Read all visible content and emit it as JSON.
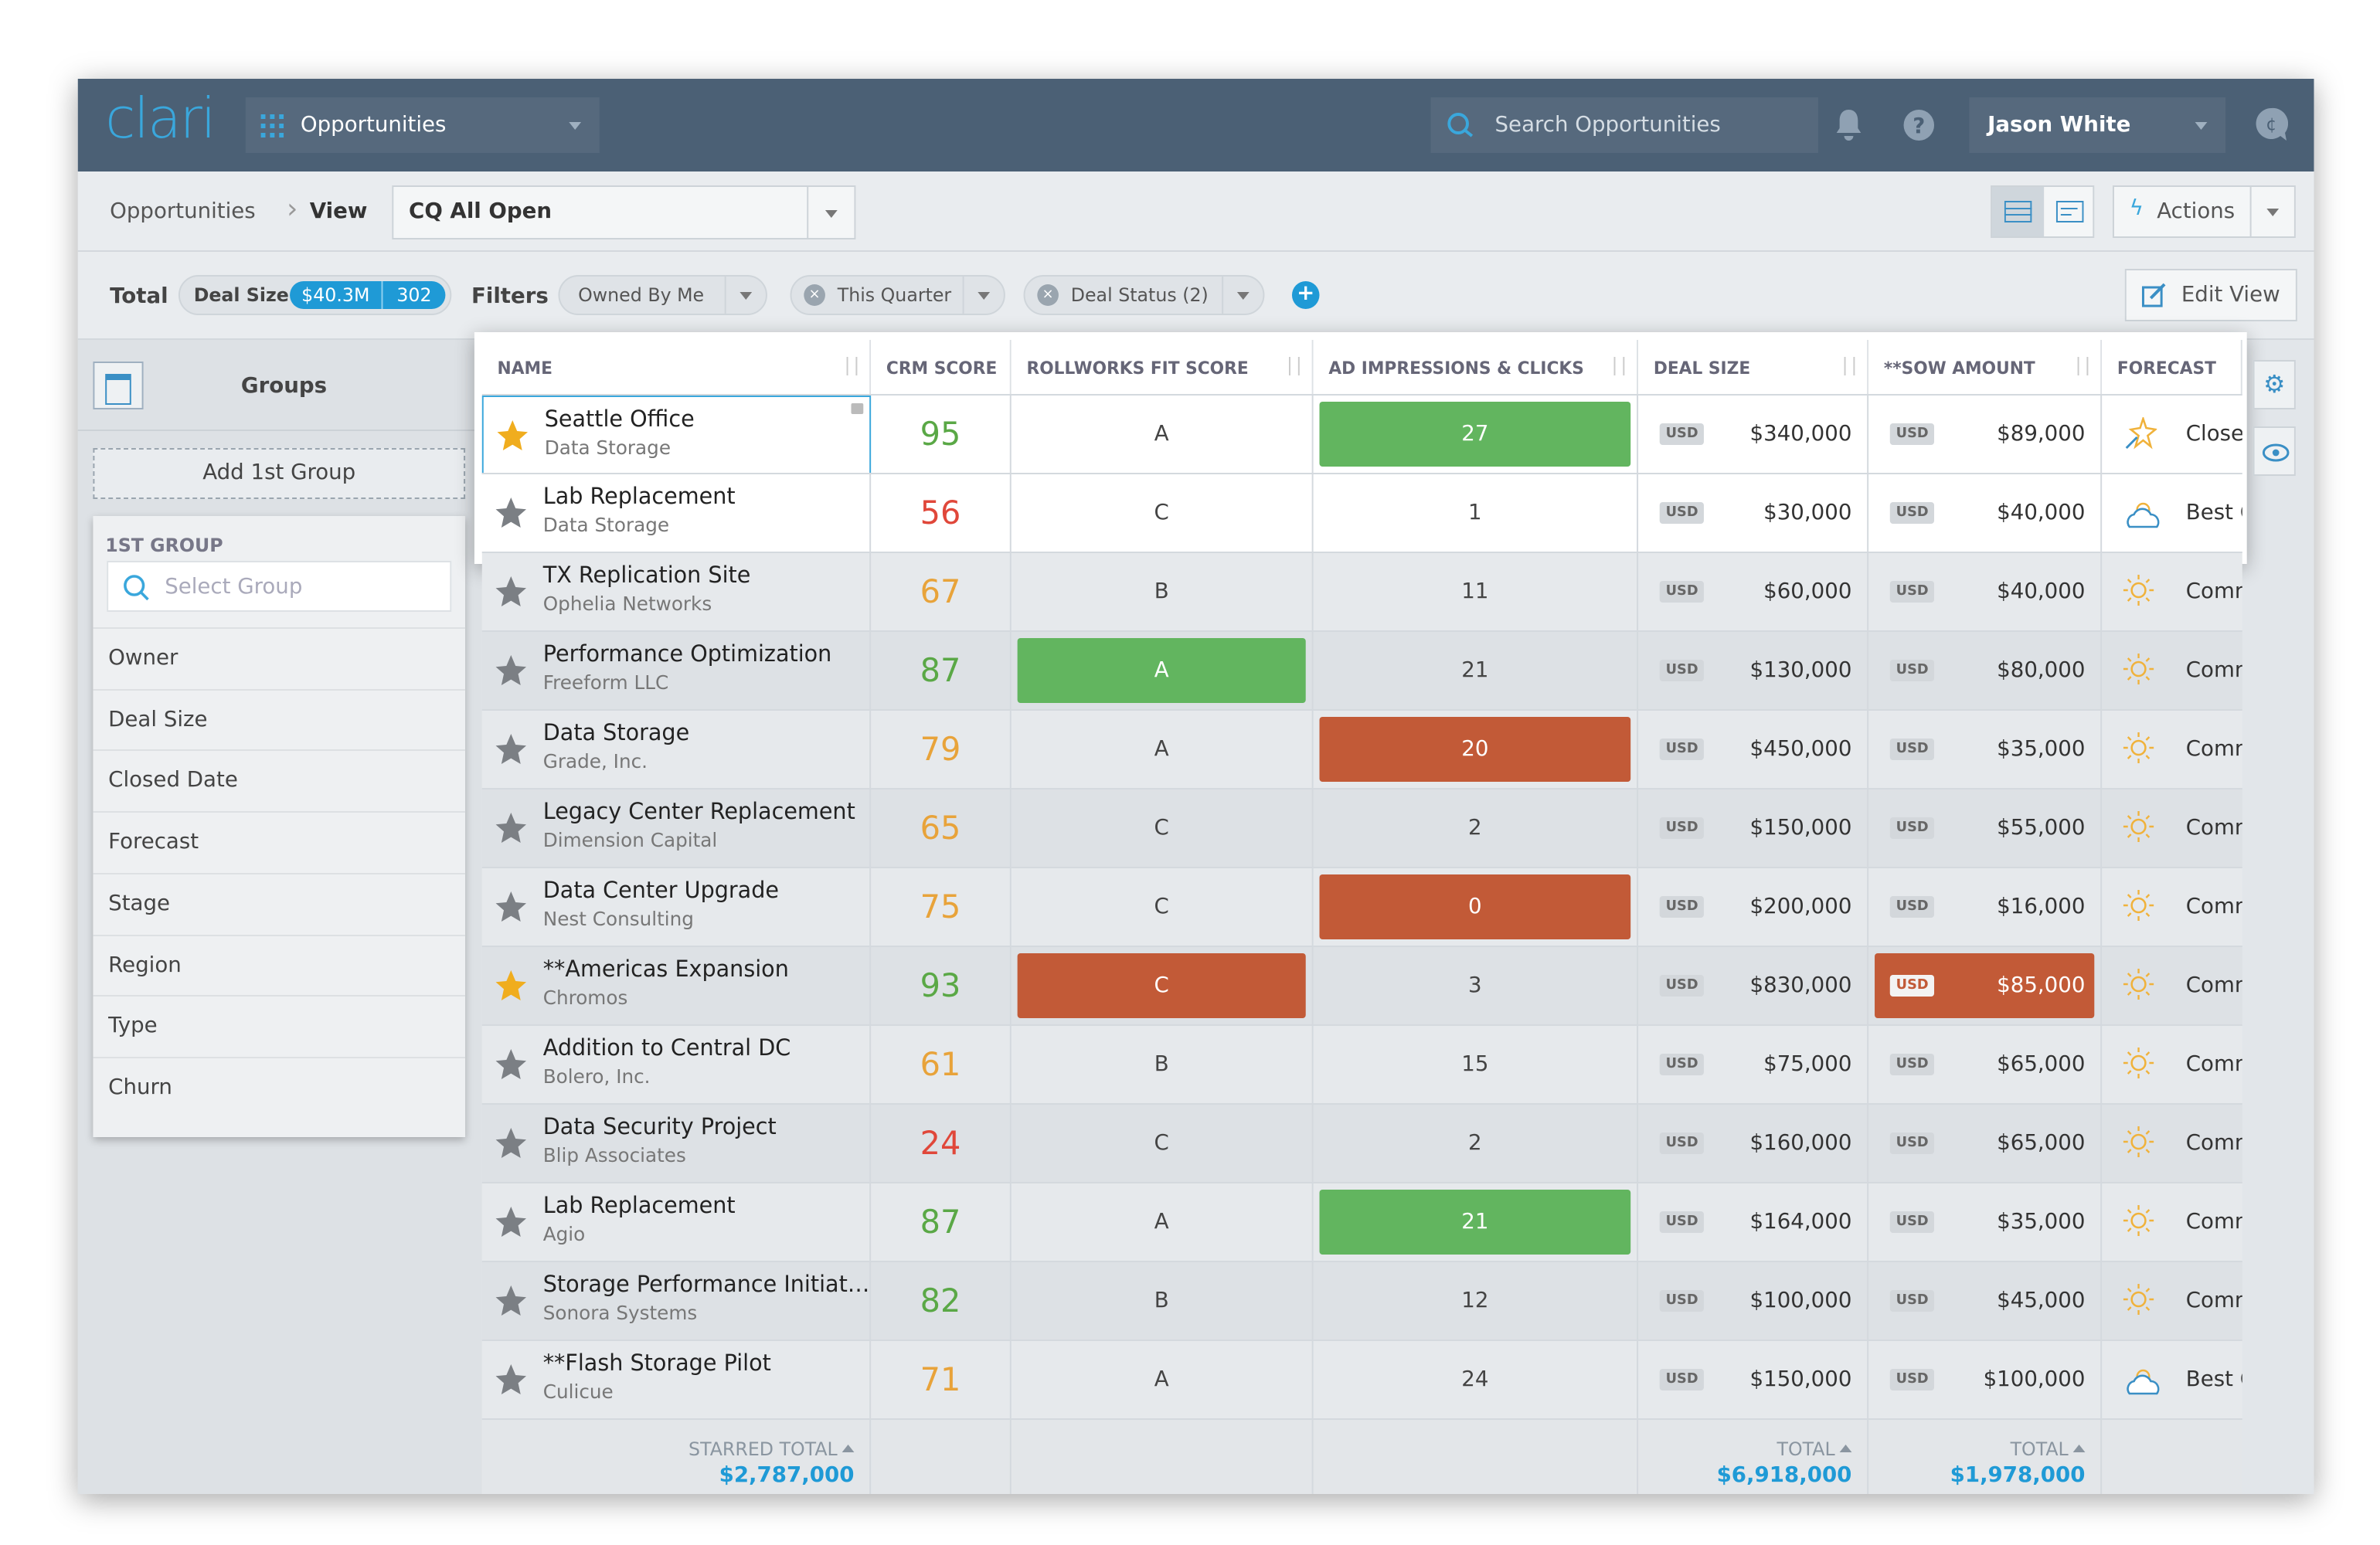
{
  "header": {
    "logo": "clari",
    "module": "Opportunities",
    "search_placeholder": "Search Opportunities",
    "user": "Jason White"
  },
  "breadcrumb": {
    "root": "Opportunities",
    "current": "View",
    "view_name": "CQ All Open",
    "actions": "Actions"
  },
  "summary": {
    "total_label": "Total",
    "deal_size_label": "Deal Size",
    "deal_size": "$40.3M",
    "count": "302",
    "filters_label": "Filters",
    "filters": [
      "Owned By Me",
      "This Quarter",
      "Deal Status (2)"
    ],
    "edit_view": "Edit View"
  },
  "groups": {
    "title": "Groups",
    "add": "Add 1st Group",
    "section": "1ST GROUP",
    "search_placeholder": "Select Group",
    "options": [
      "Owner",
      "Deal Size",
      "Closed Date",
      "Forecast",
      "Stage",
      "Region",
      "Type",
      "Churn"
    ]
  },
  "table": {
    "columns": [
      "NAME",
      "CRM SCORE",
      "ROLLWORKS FIT SCORE",
      "AD IMPRESSIONS & CLICKS",
      "DEAL SIZE",
      "**SOW AMOUNT",
      "FORECAST"
    ],
    "rows": [
      {
        "name": "Seattle Office",
        "account": "Data Storage",
        "starred": true,
        "crm_score": "95",
        "crm_color": "#5aa846",
        "fit": "A",
        "impressions": "27",
        "impressions_highlight": "#62b55f",
        "currency": "USD",
        "deal_size": "$340,000",
        "sow_amount": "$89,000",
        "forecast": "Closed",
        "forecast_icon": "spark"
      },
      {
        "name": "Lab Replacement",
        "account": "Data Storage",
        "starred": false,
        "crm_score": "56",
        "crm_color": "#e0473a",
        "fit": "C",
        "impressions": "1",
        "currency": "USD",
        "deal_size": "$30,000",
        "sow_amount": "$40,000",
        "forecast": "Best Case",
        "forecast_icon": "cloud"
      },
      {
        "name": "TX Replication Site",
        "account": "Ophelia Networks",
        "starred": false,
        "crm_score": "67",
        "crm_color": "#e8a33a",
        "fit": "B",
        "impressions": "11",
        "currency": "USD",
        "deal_size": "$60,000",
        "sow_amount": "$40,000",
        "forecast": "Commit",
        "forecast_icon": "sun"
      },
      {
        "name": "Performance Optimization",
        "account": "Freeform LLC",
        "starred": false,
        "crm_score": "87",
        "crm_color": "#5aa846",
        "fit": "A",
        "fit_highlight": "#62b55f",
        "impressions": "21",
        "currency": "USD",
        "deal_size": "$130,000",
        "sow_amount": "$80,000",
        "forecast": "Commit",
        "forecast_icon": "sun"
      },
      {
        "name": "Data Storage",
        "account": "Grade, Inc.",
        "starred": false,
        "crm_score": "79",
        "crm_color": "#e8a33a",
        "fit": "A",
        "impressions": "20",
        "impressions_highlight": "#c25a37",
        "currency": "USD",
        "deal_size": "$450,000",
        "sow_amount": "$35,000",
        "forecast": "Commit",
        "forecast_icon": "sun"
      },
      {
        "name": "Legacy Center Replacement",
        "account": "Dimension Capital",
        "starred": false,
        "crm_score": "65",
        "crm_color": "#e8a33a",
        "fit": "C",
        "impressions": "2",
        "currency": "USD",
        "deal_size": "$150,000",
        "sow_amount": "$55,000",
        "forecast": "Commit",
        "forecast_icon": "sun"
      },
      {
        "name": "Data Center Upgrade",
        "account": "Nest Consulting",
        "starred": false,
        "crm_score": "75",
        "crm_color": "#e8a33a",
        "fit": "C",
        "impressions": "0",
        "impressions_highlight": "#c25a37",
        "currency": "USD",
        "deal_size": "$200,000",
        "sow_amount": "$16,000",
        "forecast": "Commit",
        "forecast_icon": "sun"
      },
      {
        "name": "**Americas Expansion",
        "account": "Chromos",
        "starred": true,
        "crm_score": "93",
        "crm_color": "#5aa846",
        "fit": "C",
        "fit_highlight": "#c25a37",
        "impressions": "3",
        "currency": "USD",
        "deal_size": "$830,000",
        "sow_amount": "$85,000",
        "sow_highlight": "#c25a37",
        "forecast": "Commit",
        "forecast_icon": "sun"
      },
      {
        "name": "Addition to Central DC",
        "account": "Bolero, Inc.",
        "starred": false,
        "crm_score": "61",
        "crm_color": "#e8a33a",
        "fit": "B",
        "impressions": "15",
        "currency": "USD",
        "deal_size": "$75,000",
        "sow_amount": "$65,000",
        "forecast": "Commit",
        "forecast_icon": "sun"
      },
      {
        "name": "Data Security Project",
        "account": "Blip Associates",
        "starred": false,
        "crm_score": "24",
        "crm_color": "#e0473a",
        "fit": "C",
        "impressions": "2",
        "currency": "USD",
        "deal_size": "$160,000",
        "sow_amount": "$65,000",
        "forecast": "Commit",
        "forecast_icon": "sun"
      },
      {
        "name": "Lab Replacement",
        "account": "Agio",
        "starred": false,
        "crm_score": "87",
        "crm_color": "#5aa846",
        "fit": "A",
        "impressions": "21",
        "impressions_highlight": "#62b55f",
        "currency": "USD",
        "deal_size": "$164,000",
        "sow_amount": "$35,000",
        "forecast": "Commit",
        "forecast_icon": "sun"
      },
      {
        "name": "Storage Performance Initiat…",
        "account": "Sonora Systems",
        "starred": false,
        "crm_score": "82",
        "crm_color": "#5aa846",
        "fit": "B",
        "impressions": "12",
        "currency": "USD",
        "deal_size": "$100,000",
        "sow_amount": "$45,000",
        "forecast": "Commit",
        "forecast_icon": "sun"
      },
      {
        "name": "**Flash Storage Pilot",
        "account": "Culicue",
        "starred": false,
        "crm_score": "71",
        "crm_color": "#e8a33a",
        "fit": "A",
        "impressions": "24",
        "currency": "USD",
        "deal_size": "$150,000",
        "sow_amount": "$100,000",
        "forecast": "Best Case",
        "forecast_icon": "cloud"
      }
    ],
    "totals": {
      "starred_label": "STARRED TOTAL",
      "starred_total": "$2,787,000",
      "total_label": "TOTAL",
      "deal_total": "$6,918,000",
      "sow_total": "$1,978,000"
    }
  }
}
